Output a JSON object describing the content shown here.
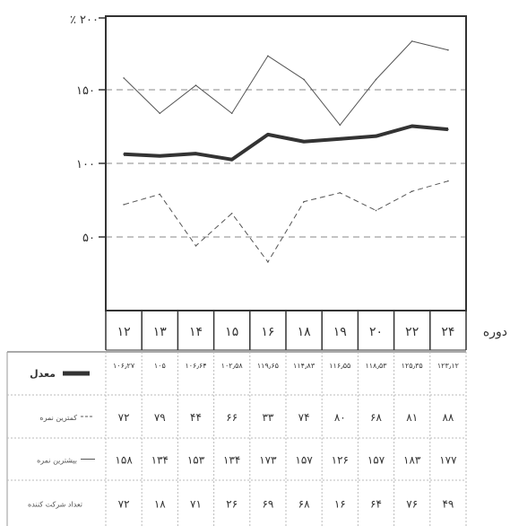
{
  "chart_data": {
    "type": "line",
    "y_unit_label": "٪ ۲۰۰",
    "ylim": [
      0,
      200
    ],
    "yticks": [
      {
        "value": 50,
        "label": "۵۰"
      },
      {
        "value": 100,
        "label": "۱۰۰"
      },
      {
        "value": 150,
        "label": "۱۵۰"
      }
    ],
    "grid": "horizontal dashed at 50, 100, 150",
    "x_axis_label": "دوره",
    "categories": [
      "۱۲",
      "۱۳",
      "۱۴",
      "۱۵",
      "۱۶",
      "۱۸",
      "۱۹",
      "۲۰",
      "۲۲",
      "۲۴"
    ],
    "series": [
      {
        "name": "معدل",
        "style": "thick",
        "color": "#333333",
        "values": [
          106.27,
          105,
          106.6,
          102.6,
          119.6,
          114.8,
          116.6,
          118.5,
          125.3,
          123.1
        ]
      },
      {
        "name": "کمترین نمره",
        "style": "dashed",
        "color": "#555555",
        "values": [
          72,
          79,
          44,
          66,
          33,
          74,
          80,
          68,
          81,
          88
        ]
      },
      {
        "name": "بیشترین نمره",
        "style": "thin",
        "color": "#555555",
        "values": [
          158,
          134,
          153,
          134,
          173,
          157,
          126,
          157,
          183,
          177
        ]
      }
    ],
    "table": {
      "rows": [
        {
          "label": "معدل",
          "style": "thick",
          "cells": [
            "۱۰۶٫۲۷",
            "۱۰۵",
            "۱۰۶٫۶۴",
            "۱۰۲٫۵۸",
            "۱۱۹٫۶۵",
            "۱۱۴٫۸۳",
            "۱۱۶٫۵۵",
            "۱۱۸٫۵۳",
            "۱۲۵٫۳۵",
            "۱۲۳٫۱۲"
          ]
        },
        {
          "label": "کمترین نمره",
          "style": "dashed",
          "cells": [
            "۷۲",
            "۷۹",
            "۴۴",
            "۶۶",
            "۳۳",
            "۷۴",
            "۸۰",
            "۶۸",
            "۸۱",
            "۸۸"
          ]
        },
        {
          "label": "بیشترین نمره",
          "style": "thin",
          "cells": [
            "۱۵۸",
            "۱۳۴",
            "۱۵۳",
            "۱۳۴",
            "۱۷۳",
            "۱۵۷",
            "۱۲۶",
            "۱۵۷",
            "۱۸۳",
            "۱۷۷"
          ]
        },
        {
          "label": "تعداد شرکت کننده",
          "style": "none",
          "cells": [
            "۷۲",
            "۱۸",
            "۷۱",
            "۲۶",
            "۶۹",
            "۶۸",
            "۱۶",
            "۶۴",
            "۷۶",
            "۴۹"
          ]
        }
      ]
    }
  }
}
